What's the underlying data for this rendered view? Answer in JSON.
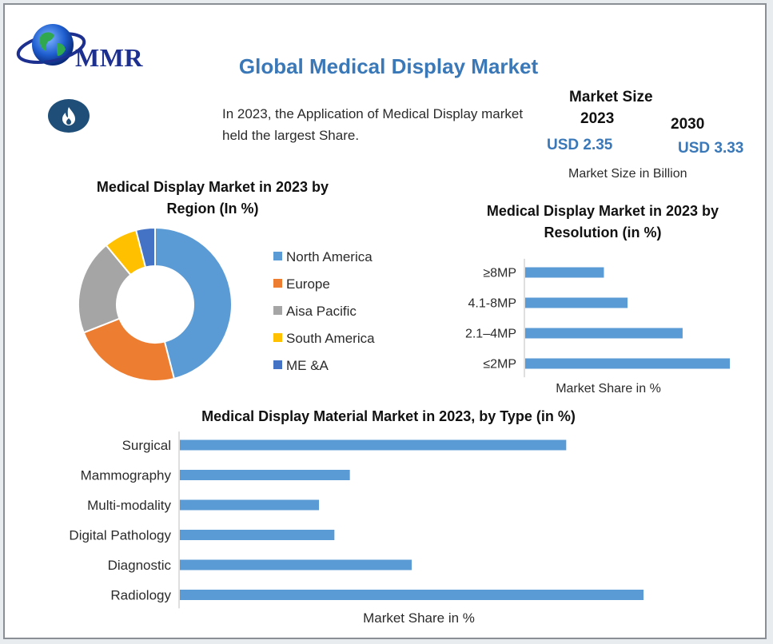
{
  "header": {
    "brand": "MMR",
    "title": "Global Medical Display Market"
  },
  "intro": {
    "text": "In 2023, the Application of Medical Display market held the largest Share."
  },
  "market_size": {
    "heading": "Market Size",
    "year_2023": "2023",
    "year_2030": "2030",
    "value_2023": "USD 2.35",
    "value_2030": "USD 3.33",
    "unit": "Market Size in Billion"
  },
  "icons": {
    "logo": "globe-logo-icon",
    "badge": "flame-icon"
  },
  "colors": {
    "title_blue": "#3a78b8",
    "bar_blue": "#5b9bd5",
    "dark_blue": "#1f4f79"
  },
  "chart_data": [
    {
      "type": "pie",
      "variant": "donut",
      "title": "Medical Display Market in 2023 by Region (In %)",
      "categories": [
        "North America",
        "Europe",
        "Aisa Pacific",
        "South America",
        "ME &A"
      ],
      "values": [
        46,
        23,
        20,
        7,
        4
      ],
      "colors": [
        "#5b9bd5",
        "#ed7d31",
        "#a5a5a5",
        "#ffc000",
        "#4472c4"
      ],
      "legend": "right"
    },
    {
      "type": "bar",
      "orientation": "horizontal",
      "title": "Medical Display Market in 2023 by Resolution (in %)",
      "categories": [
        "≥8MP",
        "4.1-8MP",
        "2.1–4MP",
        "≤2MP"
      ],
      "values": [
        10,
        13,
        20,
        26
      ],
      "xlabel": "Market Share in %",
      "xlim": [
        0,
        26
      ],
      "grid": false
    },
    {
      "type": "bar",
      "orientation": "horizontal",
      "title": "Medical Display Material Market in 2023, by Type (in %)",
      "categories": [
        "Surgical",
        "Mammography",
        "Multi-modality",
        "Digital Pathology",
        "Diagnostic",
        "Radiology"
      ],
      "values": [
        25,
        11,
        9,
        10,
        15,
        30
      ],
      "xlabel": "Market  Share in %",
      "xlim": [
        0,
        30
      ],
      "grid": false
    }
  ]
}
